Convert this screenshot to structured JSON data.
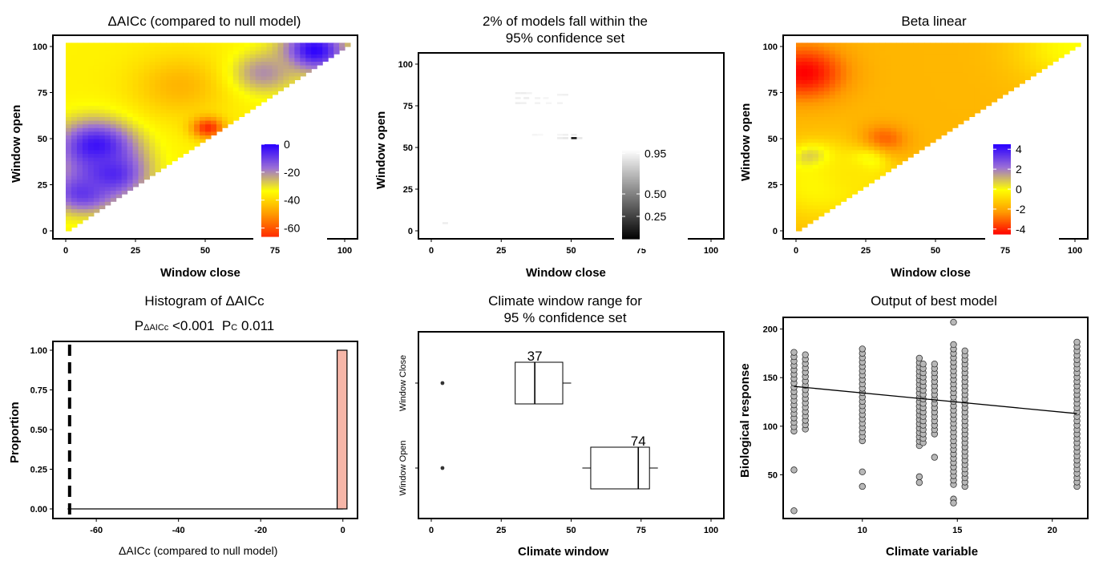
{
  "chart_data": [
    {
      "type": "heatmap",
      "title": "ΔAICc (compared to null model)",
      "xlabel": "Window close",
      "ylabel": "Window open",
      "xlim": [
        0,
        100
      ],
      "ylim": [
        0,
        100
      ],
      "xticks": [
        "0",
        "25",
        "50",
        "75",
        "100"
      ],
      "yticks": [
        "0",
        "25",
        "50",
        "75",
        "100"
      ],
      "colorbar": {
        "ticks": [
          "0",
          "-20",
          "-40",
          "-60"
        ],
        "values": [
          0,
          -20,
          -40,
          -60
        ],
        "range": [
          -66,
          0
        ],
        "colors": [
          "#ff2a00",
          "#ff9900",
          "#ffff00",
          "#9b6fd6",
          "#2b00ff"
        ]
      },
      "field": {
        "base": -35,
        "min": -66,
        "max": 0,
        "blobs": [
          {
            "open": 97,
            "close": 88,
            "value": 0,
            "spread": 8
          },
          {
            "open": 45,
            "close": 10,
            "value": -2,
            "spread": 10
          },
          {
            "open": 30,
            "close": 15,
            "value": -5,
            "spread": 9
          },
          {
            "open": 20,
            "close": 5,
            "value": -8,
            "spread": 8
          },
          {
            "open": 78,
            "close": 40,
            "value": -45,
            "spread": 12
          },
          {
            "open": 55,
            "close": 50,
            "value": -66,
            "spread": 4
          },
          {
            "open": 85,
            "close": 70,
            "value": -20,
            "spread": 8
          }
        ]
      }
    },
    {
      "type": "heatmap",
      "title": "2% of models fall within the",
      "title_line2": "95% confidence set",
      "xlabel": "Window close",
      "ylabel": "Window open",
      "xlim": [
        0,
        100
      ],
      "ylim": [
        0,
        100
      ],
      "xticks": [
        "0",
        "25",
        "50",
        "75",
        "100"
      ],
      "yticks": [
        "0",
        "25",
        "50",
        "75",
        "100"
      ],
      "colorbar": {
        "ticks": [
          "0.95",
          "0.50",
          "0.25"
        ],
        "values": [
          0.95,
          0.5,
          0.25
        ],
        "range": [
          0,
          1
        ],
        "colors": [
          "#000000",
          "#ffffff"
        ]
      },
      "cells": [
        {
          "open": 82,
          "close": 30,
          "value": 0.93
        },
        {
          "open": 82,
          "close": 32,
          "value": 0.93
        },
        {
          "open": 82,
          "close": 34,
          "value": 0.95
        },
        {
          "open": 79,
          "close": 30,
          "value": 0.94
        },
        {
          "open": 79,
          "close": 33,
          "value": 0.93
        },
        {
          "open": 76,
          "close": 30,
          "value": 0.93
        },
        {
          "open": 76,
          "close": 32,
          "value": 0.94
        },
        {
          "open": 79,
          "close": 37,
          "value": 0.95
        },
        {
          "open": 79,
          "close": 40,
          "value": 0.96
        },
        {
          "open": 76,
          "close": 37,
          "value": 0.95
        },
        {
          "open": 76,
          "close": 41,
          "value": 0.96
        },
        {
          "open": 81,
          "close": 45,
          "value": 0.95
        },
        {
          "open": 81,
          "close": 47,
          "value": 0.94
        },
        {
          "open": 76,
          "close": 45,
          "value": 0.95
        },
        {
          "open": 57,
          "close": 36,
          "value": 0.96
        },
        {
          "open": 57,
          "close": 38,
          "value": 0.97
        },
        {
          "open": 57,
          "close": 45,
          "value": 0.96
        },
        {
          "open": 57,
          "close": 47,
          "value": 0.94
        },
        {
          "open": 55,
          "close": 45,
          "value": 0.92
        },
        {
          "open": 55,
          "close": 47,
          "value": 0.9
        },
        {
          "open": 55,
          "close": 50,
          "value": 0.05
        },
        {
          "open": 55,
          "close": 52,
          "value": 0.9
        },
        {
          "open": 57,
          "close": 50,
          "value": 0.93
        },
        {
          "open": 4,
          "close": 4,
          "value": 0.93
        }
      ]
    },
    {
      "type": "heatmap",
      "title": "Beta linear",
      "xlabel": "Window close",
      "ylabel": "Window open",
      "xlim": [
        0,
        100
      ],
      "ylim": [
        0,
        100
      ],
      "xticks": [
        "0",
        "25",
        "50",
        "75",
        "100"
      ],
      "yticks": [
        "0",
        "25",
        "50",
        "75",
        "100"
      ],
      "colorbar": {
        "ticks": [
          "4",
          "2",
          "0",
          "-2",
          "-4"
        ],
        "values": [
          4,
          2,
          0,
          -2,
          -4
        ],
        "range": [
          -4.5,
          4.5
        ],
        "colors": [
          "#ff0000",
          "#ff9900",
          "#ffff00",
          "#9b6fd6",
          "#2b00ff"
        ]
      },
      "field": {
        "base": -1.6,
        "min": -4.5,
        "max": 4.5,
        "blobs": [
          {
            "open": 85,
            "close": 2,
            "value": -4.5,
            "spread": 10
          },
          {
            "open": 48,
            "close": 30,
            "value": -3.5,
            "spread": 6
          },
          {
            "open": 38,
            "close": 5,
            "value": 2.5,
            "spread": 5
          },
          {
            "open": 36,
            "close": 24,
            "value": 2.2,
            "spread": 4
          },
          {
            "open": 25,
            "close": 8,
            "value": 0,
            "spread": 14
          },
          {
            "open": 99,
            "close": 98,
            "value": 0,
            "spread": 14
          },
          {
            "open": 30,
            "close": 20,
            "value": -0.5,
            "spread": 10
          }
        ]
      }
    },
    {
      "type": "bar",
      "title": "Histogram of ΔAICc",
      "subtitle_parts": {
        "p1": "P",
        "p1sub": "ΔAICc",
        "p1val": " <0.001  ",
        "p2": "P",
        "p2sub": "C",
        "p2val": " 0.011"
      },
      "xlabel": "ΔAICc (compared to null model)",
      "ylabel": "Proportion",
      "xlim": [
        -69,
        2
      ],
      "ylim": [
        0,
        1
      ],
      "xticks": [
        "-60",
        "-40",
        "-20",
        "0"
      ],
      "yticks": [
        "0.00",
        "0.25",
        "0.50",
        "0.75",
        "1.00"
      ],
      "bins": [
        {
          "x0": -1.4,
          "x1": 1.0,
          "value": 1.0
        }
      ],
      "baseline": {
        "from": -67,
        "to": 0
      },
      "vline": {
        "x": -66.5,
        "style": "dashed"
      },
      "bar_color": "#f6b6a8"
    },
    {
      "type": "boxplot",
      "title": "Climate window range for",
      "title_line2": "95 % confidence set",
      "xlabel": "Climate window",
      "ylabel": "",
      "xlim": [
        0,
        100
      ],
      "xticks": [
        "0",
        "25",
        "50",
        "75",
        "100"
      ],
      "categories": [
        "Window Close",
        "Window Open"
      ],
      "boxes": [
        {
          "name": "Window Close",
          "min": 30,
          "q1": 30,
          "median": 37,
          "q3": 47,
          "max": 50,
          "outliers": [
            4
          ],
          "label": "37"
        },
        {
          "name": "Window Open",
          "min": 54,
          "q1": 57,
          "median": 74,
          "q3": 78,
          "max": 81,
          "outliers": [
            4
          ],
          "label": "74"
        }
      ]
    },
    {
      "type": "scatter",
      "title": "Output of best model",
      "xlabel": "Climate variable",
      "ylabel": "Biological response",
      "xlim": [
        6.0,
        21.7
      ],
      "ylim": [
        5,
        212
      ],
      "xticks": [
        "10",
        "15",
        "20"
      ],
      "yticks": [
        "50",
        "100",
        "150",
        "200"
      ],
      "columns": [
        {
          "x": 6.4,
          "ymin": 95,
          "ymax": 180,
          "extra": [
            55,
            13
          ]
        },
        {
          "x": 7.0,
          "ymin": 97,
          "ymax": 174,
          "extra": []
        },
        {
          "x": 10.0,
          "ymin": 85,
          "ymax": 182,
          "extra": [
            53,
            38
          ]
        },
        {
          "x": 13.0,
          "ymin": 80,
          "ymax": 170,
          "extra": [
            48,
            42
          ]
        },
        {
          "x": 13.2,
          "ymin": 83,
          "ymax": 166,
          "extra": []
        },
        {
          "x": 13.8,
          "ymin": 92,
          "ymax": 165,
          "extra": [
            68
          ]
        },
        {
          "x": 14.8,
          "ymin": 40,
          "ymax": 188,
          "extra": [
            207,
            25,
            21
          ]
        },
        {
          "x": 15.4,
          "ymin": 38,
          "ymax": 180,
          "extra": []
        },
        {
          "x": 21.3,
          "ymin": 38,
          "ymax": 188,
          "extra": []
        }
      ],
      "fit_line": {
        "x": [
          6.4,
          21.3
        ],
        "y": [
          141,
          113
        ]
      }
    }
  ]
}
